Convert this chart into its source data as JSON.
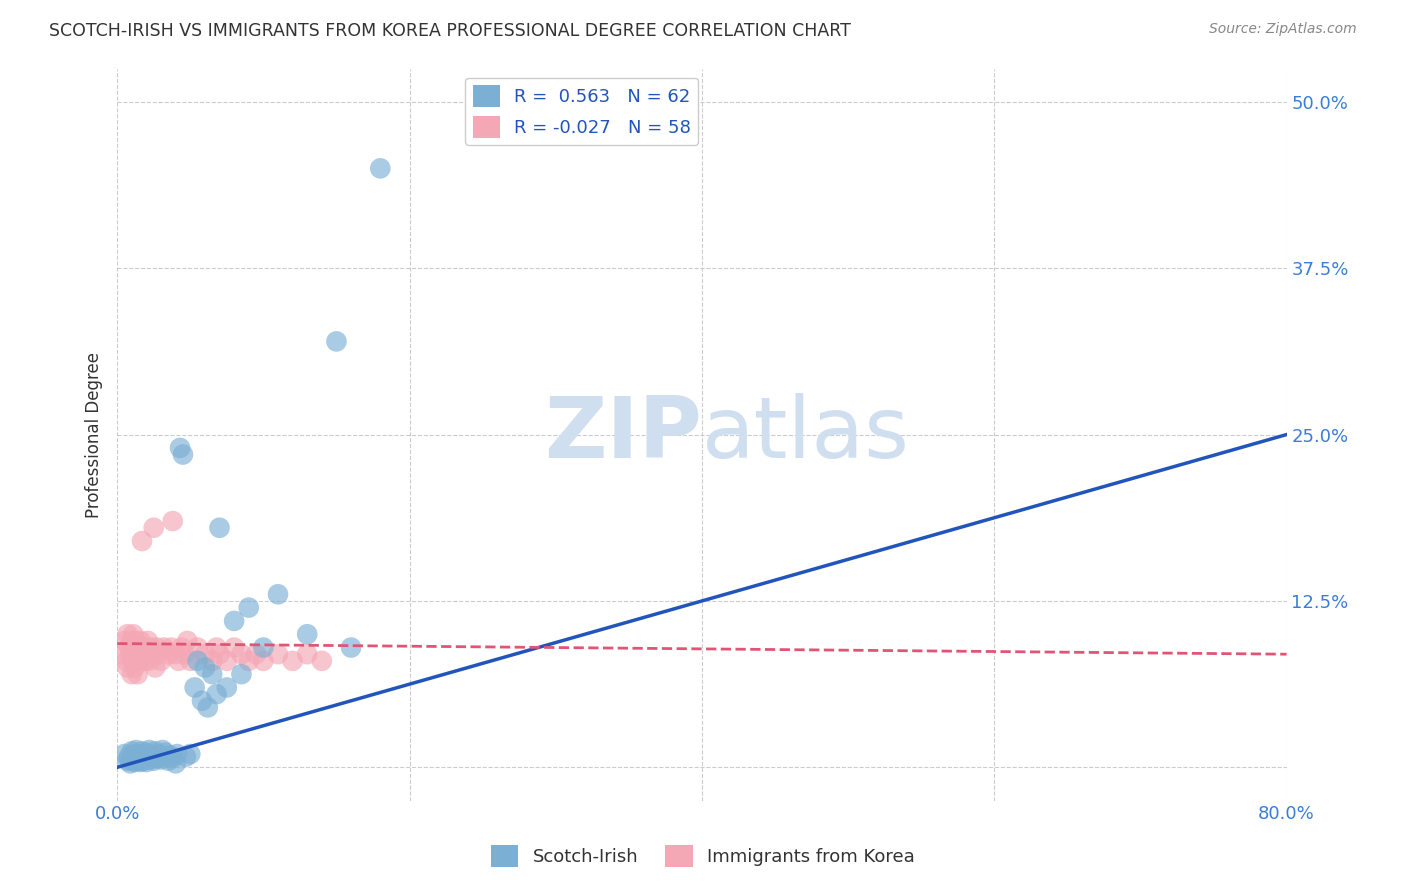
{
  "title": "SCOTCH-IRISH VS IMMIGRANTS FROM KOREA PROFESSIONAL DEGREE CORRELATION CHART",
  "source": "Source: ZipAtlas.com",
  "ylabel": "Professional Degree",
  "ytick_labels": [
    "",
    "12.5%",
    "25.0%",
    "37.5%",
    "50.0%"
  ],
  "ytick_values": [
    0.0,
    0.125,
    0.25,
    0.375,
    0.5
  ],
  "xtick_vals": [
    0.0,
    0.2,
    0.4,
    0.6,
    0.8
  ],
  "xmin": 0.0,
  "xmax": 0.8,
  "ymin": -0.025,
  "ymax": 0.525,
  "blue_R": 0.563,
  "blue_N": 62,
  "pink_R": -0.027,
  "pink_N": 58,
  "blue_color": "#7BAFD4",
  "pink_color": "#F4A7B5",
  "blue_line_color": "#2255BB",
  "pink_line_color": "#E05575",
  "background_color": "#FFFFFF",
  "grid_color": "#CCCCCC",
  "title_color": "#333333",
  "axis_label_color": "#3B7DD8",
  "watermark_color": "#D0DFF0",
  "legend_label1": "R =  0.563   N = 62",
  "legend_label2": "R = -0.027   N = 58",
  "blue_scatter_x": [
    0.005,
    0.007,
    0.008,
    0.009,
    0.01,
    0.01,
    0.011,
    0.012,
    0.012,
    0.013,
    0.013,
    0.014,
    0.015,
    0.015,
    0.016,
    0.016,
    0.017,
    0.017,
    0.018,
    0.018,
    0.019,
    0.02,
    0.02,
    0.021,
    0.022,
    0.023,
    0.024,
    0.025,
    0.026,
    0.027,
    0.028,
    0.03,
    0.031,
    0.032,
    0.033,
    0.035,
    0.036,
    0.038,
    0.04,
    0.041,
    0.043,
    0.045,
    0.047,
    0.05,
    0.053,
    0.055,
    0.058,
    0.06,
    0.062,
    0.065,
    0.068,
    0.07,
    0.075,
    0.08,
    0.085,
    0.09,
    0.1,
    0.11,
    0.13,
    0.15,
    0.16,
    0.18
  ],
  "blue_scatter_y": [
    0.01,
    0.005,
    0.008,
    0.003,
    0.005,
    0.012,
    0.007,
    0.004,
    0.01,
    0.006,
    0.013,
    0.008,
    0.005,
    0.01,
    0.004,
    0.008,
    0.006,
    0.012,
    0.005,
    0.01,
    0.007,
    0.004,
    0.011,
    0.008,
    0.013,
    0.006,
    0.009,
    0.005,
    0.012,
    0.007,
    0.01,
    0.006,
    0.013,
    0.008,
    0.011,
    0.005,
    0.009,
    0.007,
    0.003,
    0.01,
    0.24,
    0.235,
    0.008,
    0.01,
    0.06,
    0.08,
    0.05,
    0.075,
    0.045,
    0.07,
    0.055,
    0.18,
    0.06,
    0.11,
    0.07,
    0.12,
    0.09,
    0.13,
    0.1,
    0.32,
    0.09,
    0.45
  ],
  "pink_scatter_x": [
    0.004,
    0.005,
    0.006,
    0.007,
    0.007,
    0.008,
    0.009,
    0.01,
    0.01,
    0.011,
    0.011,
    0.012,
    0.012,
    0.013,
    0.013,
    0.014,
    0.015,
    0.015,
    0.016,
    0.016,
    0.017,
    0.018,
    0.019,
    0.02,
    0.021,
    0.022,
    0.023,
    0.024,
    0.025,
    0.026,
    0.027,
    0.028,
    0.03,
    0.032,
    0.035,
    0.037,
    0.038,
    0.04,
    0.042,
    0.044,
    0.046,
    0.048,
    0.05,
    0.055,
    0.06,
    0.065,
    0.068,
    0.07,
    0.075,
    0.08,
    0.085,
    0.09,
    0.095,
    0.1,
    0.11,
    0.12,
    0.13,
    0.14
  ],
  "pink_scatter_y": [
    0.085,
    0.095,
    0.08,
    0.1,
    0.075,
    0.09,
    0.085,
    0.095,
    0.07,
    0.1,
    0.08,
    0.09,
    0.075,
    0.085,
    0.095,
    0.07,
    0.08,
    0.09,
    0.085,
    0.095,
    0.17,
    0.09,
    0.08,
    0.085,
    0.095,
    0.08,
    0.09,
    0.085,
    0.18,
    0.075,
    0.09,
    0.085,
    0.08,
    0.09,
    0.085,
    0.09,
    0.185,
    0.085,
    0.08,
    0.09,
    0.085,
    0.095,
    0.08,
    0.09,
    0.085,
    0.08,
    0.09,
    0.085,
    0.08,
    0.09,
    0.085,
    0.08,
    0.085,
    0.08,
    0.085,
    0.08,
    0.085,
    0.08
  ],
  "blue_line_x": [
    0.0,
    0.8
  ],
  "blue_line_y": [
    0.0,
    0.25
  ],
  "pink_line_x": [
    0.0,
    0.8
  ],
  "pink_line_y": [
    0.093,
    0.085
  ]
}
